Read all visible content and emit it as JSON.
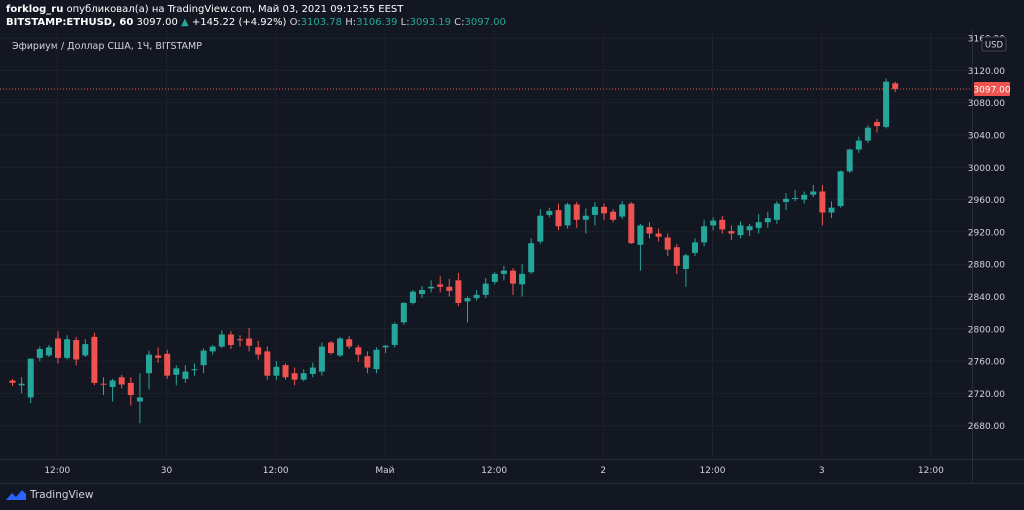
{
  "header": {
    "publisher": "forklog_ru",
    "published_text": "опубликовал(а) на TradingView.com, Май 03, 2021 09:12:55 EEST",
    "symbol": "BITSTAMP:ETHUSD, 60",
    "last": "3097.00",
    "change": "+145.22 (+4.92%)",
    "o_label": "O:",
    "o": "3103.78",
    "h_label": "H:",
    "h": "3106.39",
    "l_label": "L:",
    "l": "3093.19",
    "c_label": "C:",
    "c": "3097.00"
  },
  "subtitle": "Эфириум / Доллар США, 1Ч, BITSTAMP",
  "logo_text": "TradingView",
  "colors": {
    "up": "#26a69a",
    "down": "#ef5350",
    "background": "#131722",
    "grid": "#1e222d",
    "text": "#d1d4dc"
  },
  "chart_data": {
    "type": "candlestick",
    "currency": "USD",
    "last_price": 3097.0,
    "last_price_label": "3097.00",
    "ylim": [
      2640,
      3170
    ],
    "y_ticks": [
      2680,
      2720,
      2760,
      2800,
      2840,
      2880,
      2920,
      2960,
      3000,
      3040,
      3080,
      3120,
      3160
    ],
    "y_tick_labels": [
      "2680.00",
      "2720.00",
      "2760.00",
      "2800.00",
      "2840.00",
      "2880.00",
      "2920.00",
      "2960.00",
      "3000.00",
      "3040.00",
      "3080.00",
      "3120.00",
      "3160.00"
    ],
    "x_labels": [
      {
        "label": "12:00",
        "index": 3
      },
      {
        "label": "30",
        "index": 15
      },
      {
        "label": "12:00",
        "index": 27
      },
      {
        "label": "Май",
        "index": 39
      },
      {
        "label": "12:00",
        "index": 51
      },
      {
        "label": "2",
        "index": 63
      },
      {
        "label": "12:00",
        "index": 75
      },
      {
        "label": "3",
        "index": 87
      },
      {
        "label": "12:00",
        "index": 99
      }
    ],
    "candles": [
      [
        2736,
        2738,
        2729,
        2733
      ],
      [
        2730,
        2740,
        2720,
        2732
      ],
      [
        2715,
        2763,
        2708,
        2763
      ],
      [
        2764,
        2778,
        2760,
        2775
      ],
      [
        2767,
        2780,
        2765,
        2777
      ],
      [
        2788,
        2797,
        2757,
        2764
      ],
      [
        2764,
        2792,
        2762,
        2787
      ],
      [
        2786,
        2790,
        2755,
        2762
      ],
      [
        2767,
        2787,
        2765,
        2781
      ],
      [
        2790,
        2795,
        2730,
        2733
      ],
      [
        2732,
        2740,
        2718,
        2731
      ],
      [
        2728,
        2738,
        2710,
        2736
      ],
      [
        2740,
        2743,
        2726,
        2731
      ],
      [
        2733,
        2740,
        2705,
        2718
      ],
      [
        2710,
        2745,
        2683,
        2715
      ],
      [
        2745,
        2773,
        2725,
        2768
      ],
      [
        2767,
        2777,
        2758,
        2764
      ],
      [
        2769,
        2774,
        2738,
        2742
      ],
      [
        2743,
        2755,
        2730,
        2751
      ],
      [
        2738,
        2755,
        2733,
        2747
      ],
      [
        2750,
        2757,
        2742,
        2750
      ],
      [
        2755,
        2776,
        2745,
        2773
      ],
      [
        2772,
        2780,
        2768,
        2778
      ],
      [
        2778,
        2798,
        2776,
        2793
      ],
      [
        2793,
        2797,
        2775,
        2780
      ],
      [
        2787,
        2792,
        2778,
        2786
      ],
      [
        2788,
        2801,
        2772,
        2779
      ],
      [
        2777,
        2785,
        2762,
        2768
      ],
      [
        2772,
        2778,
        2737,
        2742
      ],
      [
        2742,
        2760,
        2737,
        2753
      ],
      [
        2755,
        2757,
        2737,
        2740
      ],
      [
        2745,
        2752,
        2730,
        2737
      ],
      [
        2737,
        2750,
        2735,
        2745
      ],
      [
        2744,
        2758,
        2740,
        2752
      ],
      [
        2747,
        2783,
        2742,
        2778
      ],
      [
        2783,
        2785,
        2768,
        2770
      ],
      [
        2767,
        2790,
        2765,
        2788
      ],
      [
        2787,
        2791,
        2775,
        2778
      ],
      [
        2777,
        2780,
        2759,
        2768
      ],
      [
        2766,
        2772,
        2745,
        2752
      ],
      [
        2750,
        2777,
        2745,
        2774
      ],
      [
        2777,
        2780,
        2770,
        2779
      ],
      [
        2780,
        2808,
        2777,
        2806
      ],
      [
        2808,
        2833,
        2805,
        2832
      ],
      [
        2832,
        2848,
        2830,
        2846
      ],
      [
        2843,
        2853,
        2838,
        2848
      ],
      [
        2850,
        2860,
        2845,
        2852
      ],
      [
        2855,
        2865,
        2845,
        2852
      ],
      [
        2852,
        2862,
        2840,
        2847
      ],
      [
        2860,
        2869,
        2828,
        2832
      ],
      [
        2834,
        2840,
        2808,
        2838
      ],
      [
        2838,
        2848,
        2835,
        2842
      ],
      [
        2842,
        2863,
        2838,
        2856
      ],
      [
        2858,
        2870,
        2855,
        2868
      ],
      [
        2868,
        2878,
        2860,
        2872
      ],
      [
        2872,
        2875,
        2842,
        2856
      ],
      [
        2855,
        2880,
        2840,
        2868
      ],
      [
        2870,
        2912,
        2868,
        2906
      ],
      [
        2908,
        2948,
        2905,
        2940
      ],
      [
        2941,
        2950,
        2938,
        2946
      ],
      [
        2947,
        2955,
        2922,
        2927
      ],
      [
        2928,
        2956,
        2924,
        2954
      ],
      [
        2954,
        2957,
        2925,
        2935
      ],
      [
        2935,
        2949,
        2918,
        2940
      ],
      [
        2941,
        2957,
        2928,
        2951
      ],
      [
        2951,
        2955,
        2935,
        2943
      ],
      [
        2945,
        2948,
        2932,
        2935
      ],
      [
        2939,
        2958,
        2936,
        2954
      ],
      [
        2955,
        2957,
        2905,
        2906
      ],
      [
        2904,
        2930,
        2872,
        2928
      ],
      [
        2926,
        2932,
        2912,
        2918
      ],
      [
        2918,
        2924,
        2908,
        2914
      ],
      [
        2913,
        2918,
        2890,
        2898
      ],
      [
        2901,
        2905,
        2868,
        2878
      ],
      [
        2874,
        2893,
        2852,
        2891
      ],
      [
        2894,
        2912,
        2890,
        2907
      ],
      [
        2907,
        2935,
        2902,
        2927
      ],
      [
        2928,
        2938,
        2922,
        2934
      ],
      [
        2935,
        2940,
        2918,
        2923
      ],
      [
        2921,
        2928,
        2910,
        2918
      ],
      [
        2916,
        2933,
        2912,
        2928
      ],
      [
        2922,
        2930,
        2915,
        2927
      ],
      [
        2925,
        2942,
        2918,
        2932
      ],
      [
        2932,
        2945,
        2925,
        2937
      ],
      [
        2935,
        2958,
        2930,
        2955
      ],
      [
        2957,
        2968,
        2947,
        2961
      ],
      [
        2961,
        2972,
        2958,
        2962
      ],
      [
        2960,
        2970,
        2955,
        2966
      ],
      [
        2966,
        2978,
        2963,
        2970
      ],
      [
        2970,
        2978,
        2928,
        2944
      ],
      [
        2944,
        2958,
        2937,
        2950
      ],
      [
        2952,
        2996,
        2950,
        2995
      ],
      [
        2995,
        3023,
        2993,
        3022
      ],
      [
        3022,
        3038,
        3018,
        3033
      ],
      [
        3033,
        3052,
        3030,
        3049
      ],
      [
        3056,
        3060,
        3043,
        3051
      ],
      [
        3050,
        3110,
        3048,
        3106
      ],
      [
        3104,
        3106,
        3093,
        3097
      ]
    ]
  }
}
